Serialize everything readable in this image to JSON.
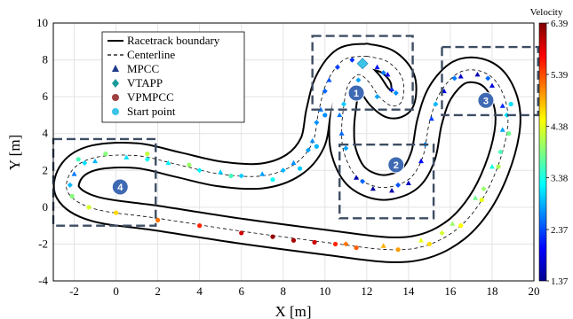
{
  "chart_data": {
    "type": "scatter",
    "xlabel": "X [m]",
    "ylabel": "Y [m]",
    "xlim": [
      -3,
      20
    ],
    "ylim": [
      -4,
      10
    ],
    "xticks": [
      "-2",
      "0",
      "2",
      "4",
      "6",
      "8",
      "10",
      "12",
      "14",
      "16",
      "18",
      "20"
    ],
    "yticks": [
      "-4",
      "-2",
      "0",
      "2",
      "4",
      "6",
      "8",
      "10"
    ],
    "grid": true,
    "legend": {
      "placement": "top-left",
      "entries": [
        "Racetrack boundary",
        "Centerline",
        "MPCC",
        "VTAPP",
        "VPMPCC",
        "Start point"
      ]
    },
    "colorbar": {
      "title": "Velocity",
      "ticks": [
        "1.37",
        "2.37",
        "3.38",
        "4.38",
        "5.39",
        "6.39"
      ],
      "range": [
        1.37,
        6.39
      ],
      "colormap": "jet"
    },
    "start_point": [
      11.8,
      7.8
    ],
    "centerline": [
      [
        12.0,
        8.2
      ],
      [
        13.0,
        7.9
      ],
      [
        13.7,
        7.0
      ],
      [
        13.7,
        5.8
      ],
      [
        13.2,
        5.5
      ],
      [
        12.6,
        6.0
      ],
      [
        12.1,
        6.8
      ],
      [
        11.6,
        7.2
      ],
      [
        11.1,
        6.6
      ],
      [
        10.9,
        5.5
      ],
      [
        10.8,
        4.2
      ],
      [
        10.9,
        3.0
      ],
      [
        11.4,
        1.8
      ],
      [
        12.2,
        1.2
      ],
      [
        13.1,
        1.1
      ],
      [
        14.1,
        1.6
      ],
      [
        14.7,
        2.8
      ],
      [
        15.0,
        4.6
      ],
      [
        15.5,
        6.2
      ],
      [
        16.4,
        7.3
      ],
      [
        17.4,
        7.4
      ],
      [
        18.2,
        6.8
      ],
      [
        18.7,
        5.5
      ],
      [
        18.7,
        4.0
      ],
      [
        18.2,
        2.0
      ],
      [
        17.4,
        0.2
      ],
      [
        16.3,
        -1.2
      ],
      [
        14.8,
        -2.1
      ],
      [
        13.0,
        -2.3
      ],
      [
        10.0,
        -1.9
      ],
      [
        6.0,
        -1.3
      ],
      [
        2.0,
        -0.6
      ],
      [
        -1.0,
        -0.1
      ],
      [
        -2.3,
        0.8
      ],
      [
        -2.1,
        2.0
      ],
      [
        -1.0,
        2.7
      ],
      [
        1.0,
        2.8
      ],
      [
        3.0,
        2.3
      ],
      [
        5.0,
        1.8
      ],
      [
        7.0,
        1.7
      ],
      [
        8.5,
        2.3
      ],
      [
        9.4,
        3.5
      ],
      [
        9.7,
        5.2
      ],
      [
        10.1,
        6.8
      ],
      [
        10.9,
        8.0
      ],
      [
        12.0,
        8.2
      ]
    ],
    "series": [
      {
        "name": "MPCC",
        "points": [
          [
            12.5,
            7.6,
            2.1
          ],
          [
            13.0,
            7.2,
            2.0
          ],
          [
            13.2,
            6.4,
            2.2
          ],
          [
            10.7,
            5.0,
            2.6
          ],
          [
            10.8,
            4.0,
            2.5
          ],
          [
            11.5,
            1.6,
            1.6
          ],
          [
            12.3,
            1.0,
            1.5
          ],
          [
            13.2,
            0.9,
            1.6
          ],
          [
            14.0,
            1.3,
            1.7
          ],
          [
            14.6,
            2.5,
            2.0
          ],
          [
            15.1,
            4.8,
            2.3
          ],
          [
            15.7,
            6.3,
            1.9
          ],
          [
            16.5,
            7.1,
            1.7
          ],
          [
            17.3,
            7.2,
            1.6
          ],
          [
            18.0,
            6.6,
            1.8
          ],
          [
            18.5,
            5.5,
            2.2
          ],
          [
            18.5,
            4.2,
            2.8
          ],
          [
            18.0,
            2.2,
            3.4
          ],
          [
            17.2,
            0.5,
            3.8
          ],
          [
            16.1,
            -0.9,
            4.0
          ],
          [
            14.6,
            -1.8,
            4.4
          ],
          [
            12.8,
            -2.1,
            4.9
          ],
          [
            -2.0,
            1.8,
            2.6
          ],
          [
            -1.0,
            2.5,
            2.9
          ],
          [
            0.5,
            2.7,
            3.1
          ],
          [
            2.5,
            2.4,
            3.2
          ],
          [
            5.0,
            1.9,
            3.0
          ],
          [
            7.0,
            1.8,
            2.8
          ],
          [
            8.5,
            2.4,
            2.7
          ],
          [
            9.4,
            3.6,
            2.7
          ],
          [
            9.8,
            5.3,
            2.6
          ],
          [
            10.2,
            6.9,
            2.4
          ]
        ]
      },
      {
        "name": "VTAPP",
        "points": [
          [
            12.8,
            7.3,
            2.6
          ],
          [
            13.4,
            6.2,
            2.7
          ],
          [
            12.5,
            6.0,
            2.8
          ],
          [
            11.6,
            6.9,
            2.8
          ],
          [
            10.9,
            5.6,
            3.0
          ],
          [
            11.0,
            3.2,
            2.8
          ],
          [
            11.8,
            1.4,
            2.5
          ],
          [
            13.5,
            1.2,
            2.4
          ],
          [
            14.8,
            3.4,
            2.7
          ],
          [
            15.3,
            5.6,
            2.9
          ],
          [
            16.2,
            7.0,
            2.6
          ],
          [
            17.8,
            7.0,
            2.5
          ],
          [
            18.7,
            5.0,
            3.1
          ],
          [
            18.4,
            3.0,
            3.6
          ],
          [
            17.6,
            1.0,
            4.0
          ],
          [
            15.6,
            -1.4,
            4.3
          ],
          [
            11.0,
            -2.0,
            5.2
          ],
          [
            -2.2,
            1.2,
            2.9
          ],
          [
            -1.5,
            2.4,
            3.1
          ],
          [
            1.5,
            2.6,
            3.3
          ],
          [
            4.0,
            2.0,
            3.2
          ],
          [
            6.0,
            1.7,
            3.0
          ],
          [
            8.0,
            2.0,
            2.9
          ],
          [
            9.2,
            3.1,
            2.8
          ],
          [
            9.6,
            4.6,
            2.7
          ],
          [
            10.0,
            6.3,
            2.5
          ],
          [
            10.6,
            7.6,
            2.3
          ],
          [
            11.3,
            8.0,
            2.2
          ]
        ]
      },
      {
        "name": "VPMPCC",
        "points": [
          [
            -2.1,
            0.6,
            3.9
          ],
          [
            -1.3,
            0.0,
            4.3
          ],
          [
            0.0,
            -0.3,
            4.7
          ],
          [
            2.0,
            -0.7,
            5.2
          ],
          [
            4.0,
            -1.0,
            5.6
          ],
          [
            6.0,
            -1.4,
            6.0
          ],
          [
            7.5,
            -1.6,
            6.3
          ],
          [
            8.5,
            -1.8,
            6.2
          ],
          [
            9.5,
            -1.9,
            6.0
          ],
          [
            10.5,
            -2.0,
            5.6
          ],
          [
            11.5,
            -2.2,
            5.3
          ],
          [
            13.5,
            -2.3,
            5.0
          ],
          [
            15.0,
            -2.0,
            4.7
          ],
          [
            16.5,
            -1.0,
            4.5
          ],
          [
            17.5,
            0.4,
            4.4
          ],
          [
            18.3,
            2.2,
            4.1
          ],
          [
            18.8,
            4.0,
            3.8
          ],
          [
            18.9,
            5.6,
            3.1
          ],
          [
            -1.8,
            2.6,
            3.6
          ],
          [
            -0.5,
            2.9,
            3.9
          ],
          [
            1.5,
            2.9,
            4.2
          ],
          [
            3.5,
            2.3,
            4.0
          ],
          [
            5.5,
            1.7,
            3.6
          ],
          [
            7.5,
            1.5,
            3.3
          ],
          [
            8.8,
            2.1,
            3.0
          ],
          [
            9.6,
            3.3,
            2.9
          ],
          [
            10.0,
            5.0,
            2.7
          ]
        ]
      }
    ],
    "regions": [
      {
        "label": "1",
        "xlim": [
          9.4,
          14.2
        ],
        "ylim": [
          5.3,
          9.3
        ],
        "marker": [
          11.5,
          6.2
        ]
      },
      {
        "label": "2",
        "xlim": [
          10.7,
          15.2
        ],
        "ylim": [
          -0.6,
          3.4
        ],
        "marker": [
          13.4,
          2.3
        ]
      },
      {
        "label": "3",
        "xlim": [
          15.6,
          20.2
        ],
        "ylim": [
          5.0,
          8.7
        ],
        "marker": [
          17.7,
          5.8
        ]
      },
      {
        "label": "4",
        "xlim": [
          -3.0,
          1.9
        ],
        "ylim": [
          -1.0,
          3.7
        ],
        "marker": [
          0.2,
          1.1
        ]
      }
    ]
  }
}
